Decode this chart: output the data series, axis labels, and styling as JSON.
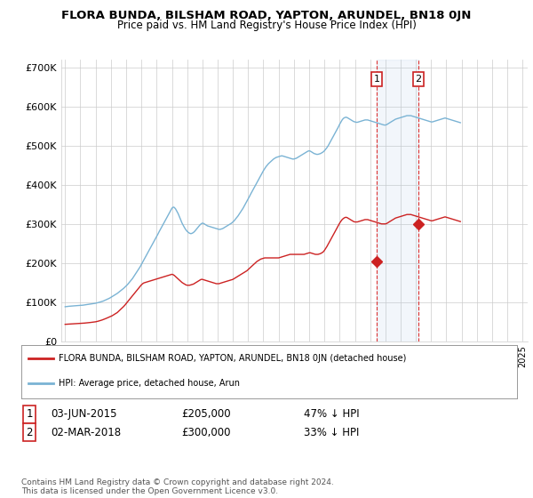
{
  "title": "FLORA BUNDA, BILSHAM ROAD, YAPTON, ARUNDEL, BN18 0JN",
  "subtitle": "Price paid vs. HM Land Registry's House Price Index (HPI)",
  "ylabel_ticks": [
    "£0",
    "£100K",
    "£200K",
    "£300K",
    "£400K",
    "£500K",
    "£600K",
    "£700K"
  ],
  "ytick_values": [
    0,
    100000,
    200000,
    300000,
    400000,
    500000,
    600000,
    700000
  ],
  "ylim": [
    0,
    720000
  ],
  "hpi_color": "#7ab3d4",
  "price_color": "#cc2222",
  "marker_color": "#cc2222",
  "sale1_year": 2015,
  "sale1_month": 6,
  "sale1_day": 3,
  "sale1_price": 205000,
  "sale2_year": 2018,
  "sale2_month": 3,
  "sale2_day": 2,
  "sale2_price": 300000,
  "legend_property": "FLORA BUNDA, BILSHAM ROAD, YAPTON, ARUNDEL, BN18 0JN (detached house)",
  "legend_hpi": "HPI: Average price, detached house, Arun",
  "footnote": "Contains HM Land Registry data © Crown copyright and database right 2024.\nThis data is licensed under the Open Government Licence v3.0.",
  "background_color": "#ffffff",
  "grid_color": "#cccccc",
  "hpi_monthly": [
    88000,
    88500,
    89000,
    89200,
    89500,
    89800,
    90000,
    90200,
    90500,
    90800,
    91000,
    91200,
    91500,
    91800,
    92000,
    92500,
    93000,
    93500,
    94000,
    94500,
    95000,
    95500,
    96000,
    96500,
    97000,
    97800,
    98500,
    99500,
    100500,
    101500,
    102500,
    104000,
    105500,
    107000,
    108500,
    110000,
    112000,
    114000,
    116000,
    118000,
    120000,
    122000,
    124500,
    127000,
    129500,
    132000,
    135000,
    138000,
    141000,
    144500,
    148000,
    152000,
    156000,
    160000,
    165000,
    170000,
    175000,
    180000,
    185000,
    190000,
    196000,
    202000,
    208000,
    214000,
    220000,
    226000,
    232000,
    238000,
    244000,
    250000,
    256000,
    262000,
    268000,
    274000,
    280000,
    286000,
    292000,
    298000,
    304000,
    310000,
    316000,
    322000,
    328000,
    334000,
    340000,
    343000,
    342000,
    338000,
    332000,
    326000,
    318000,
    310000,
    302000,
    296000,
    290000,
    285000,
    281000,
    278000,
    276000,
    275000,
    276000,
    278000,
    281000,
    285000,
    289000,
    293000,
    297000,
    300000,
    302000,
    301000,
    299000,
    297000,
    295000,
    294000,
    293000,
    292000,
    291000,
    290000,
    289000,
    288000,
    287000,
    286000,
    286000,
    287000,
    288000,
    290000,
    292000,
    294000,
    296000,
    298000,
    300000,
    302000,
    305000,
    308000,
    312000,
    316000,
    320000,
    325000,
    330000,
    335000,
    340000,
    346000,
    352000,
    358000,
    364000,
    370000,
    376000,
    382000,
    388000,
    394000,
    400000,
    406000,
    412000,
    418000,
    424000,
    430000,
    436000,
    441000,
    446000,
    450000,
    454000,
    457000,
    460000,
    463000,
    466000,
    468000,
    470000,
    471000,
    472000,
    473000,
    474000,
    474000,
    473000,
    472000,
    471000,
    470000,
    469000,
    468000,
    467000,
    466000,
    466000,
    467000,
    468000,
    470000,
    472000,
    474000,
    476000,
    478000,
    480000,
    482000,
    484000,
    486000,
    487000,
    486000,
    484000,
    482000,
    480000,
    479000,
    478000,
    478000,
    479000,
    480000,
    482000,
    484000,
    487000,
    491000,
    495000,
    500000,
    506000,
    512000,
    518000,
    524000,
    530000,
    536000,
    542000,
    548000,
    555000,
    561000,
    566000,
    570000,
    572000,
    573000,
    572000,
    570000,
    568000,
    566000,
    564000,
    562000,
    561000,
    560000,
    560000,
    561000,
    562000,
    563000,
    564000,
    565000,
    566000,
    566000,
    566000,
    565000,
    564000,
    563000,
    562000,
    561000,
    560000,
    559000,
    558000,
    557000,
    556000,
    555000,
    554000,
    553000,
    553000,
    554000,
    556000,
    558000,
    560000,
    562000,
    564000,
    566000,
    568000,
    569000,
    570000,
    571000,
    572000,
    573000,
    574000,
    575000,
    576000,
    577000,
    577000,
    577000,
    577000,
    576000,
    575000,
    574000,
    573000,
    572000,
    571000,
    570000,
    569000,
    568000,
    567000,
    566000,
    565000,
    564000,
    563000,
    562000,
    561000,
    561000,
    562000,
    563000,
    564000,
    565000,
    566000,
    567000,
    568000,
    569000,
    570000,
    571000,
    570000,
    569000,
    568000,
    567000,
    566000,
    565000,
    564000,
    563000,
    562000,
    561000,
    560000,
    559000
  ],
  "price_monthly": [
    43000,
    43200,
    43400,
    43500,
    43700,
    43900,
    44000,
    44200,
    44400,
    44600,
    44800,
    45000,
    45200,
    45500,
    45800,
    46100,
    46400,
    46700,
    47000,
    47400,
    47800,
    48200,
    48600,
    49000,
    49500,
    50200,
    51000,
    52000,
    53000,
    54000,
    55200,
    56500,
    57800,
    59200,
    60600,
    62000,
    63500,
    65000,
    67000,
    69000,
    71000,
    73000,
    76000,
    79000,
    82000,
    85000,
    88500,
    92000,
    96000,
    100000,
    104000,
    108000,
    112000,
    116000,
    120000,
    124000,
    128000,
    132000,
    136000,
    140000,
    144000,
    147000,
    149000,
    150000,
    151000,
    152000,
    153000,
    154000,
    155000,
    156000,
    157000,
    158000,
    159000,
    160000,
    161000,
    162000,
    163000,
    164000,
    165000,
    166000,
    167000,
    168000,
    169000,
    170000,
    171000,
    170000,
    168000,
    165000,
    162000,
    159000,
    156000,
    153000,
    150000,
    148000,
    146000,
    144000,
    143000,
    143000,
    143000,
    144000,
    145000,
    146000,
    148000,
    150000,
    152000,
    154000,
    156000,
    158000,
    158000,
    157000,
    156000,
    155000,
    154000,
    153000,
    152000,
    151000,
    150000,
    149000,
    148000,
    147000,
    147000,
    147000,
    148000,
    149000,
    150000,
    151000,
    152000,
    153000,
    154000,
    155000,
    156000,
    157000,
    158000,
    160000,
    162000,
    164000,
    166000,
    168000,
    170000,
    172000,
    174000,
    176000,
    178000,
    180000,
    183000,
    186000,
    189000,
    192000,
    195000,
    198000,
    201000,
    204000,
    206000,
    208000,
    210000,
    211000,
    212000,
    213000,
    213000,
    213000,
    213000,
    213000,
    213000,
    213000,
    213000,
    213000,
    213000,
    213000,
    213000,
    214000,
    215000,
    216000,
    217000,
    218000,
    219000,
    220000,
    221000,
    222000,
    222000,
    222000,
    222000,
    222000,
    222000,
    222000,
    222000,
    222000,
    222000,
    222000,
    222000,
    223000,
    224000,
    225000,
    226000,
    226000,
    225000,
    224000,
    223000,
    222000,
    222000,
    222000,
    223000,
    224000,
    226000,
    228000,
    232000,
    237000,
    242000,
    248000,
    254000,
    260000,
    266000,
    272000,
    278000,
    284000,
    290000,
    296000,
    302000,
    307000,
    311000,
    314000,
    316000,
    317000,
    316000,
    314000,
    312000,
    310000,
    308000,
    306000,
    305000,
    305000,
    305000,
    306000,
    307000,
    308000,
    309000,
    310000,
    311000,
    311000,
    311000,
    310000,
    309000,
    308000,
    307000,
    306000,
    305000,
    304000,
    303000,
    302000,
    301000,
    300000,
    300000,
    300000,
    300000,
    301000,
    303000,
    305000,
    307000,
    309000,
    311000,
    313000,
    315000,
    316000,
    317000,
    318000,
    319000,
    320000,
    321000,
    322000,
    323000,
    324000,
    324000,
    324000,
    324000,
    323000,
    322000,
    321000,
    320000,
    319000,
    318000,
    317000,
    316000,
    315000,
    314000,
    313000,
    312000,
    311000,
    310000,
    309000,
    308000,
    308000,
    309000,
    310000,
    311000,
    312000,
    313000,
    314000,
    315000,
    316000,
    317000,
    318000,
    317000,
    316000,
    315000,
    314000,
    313000,
    312000,
    311000,
    310000,
    309000,
    308000,
    307000,
    306000
  ]
}
